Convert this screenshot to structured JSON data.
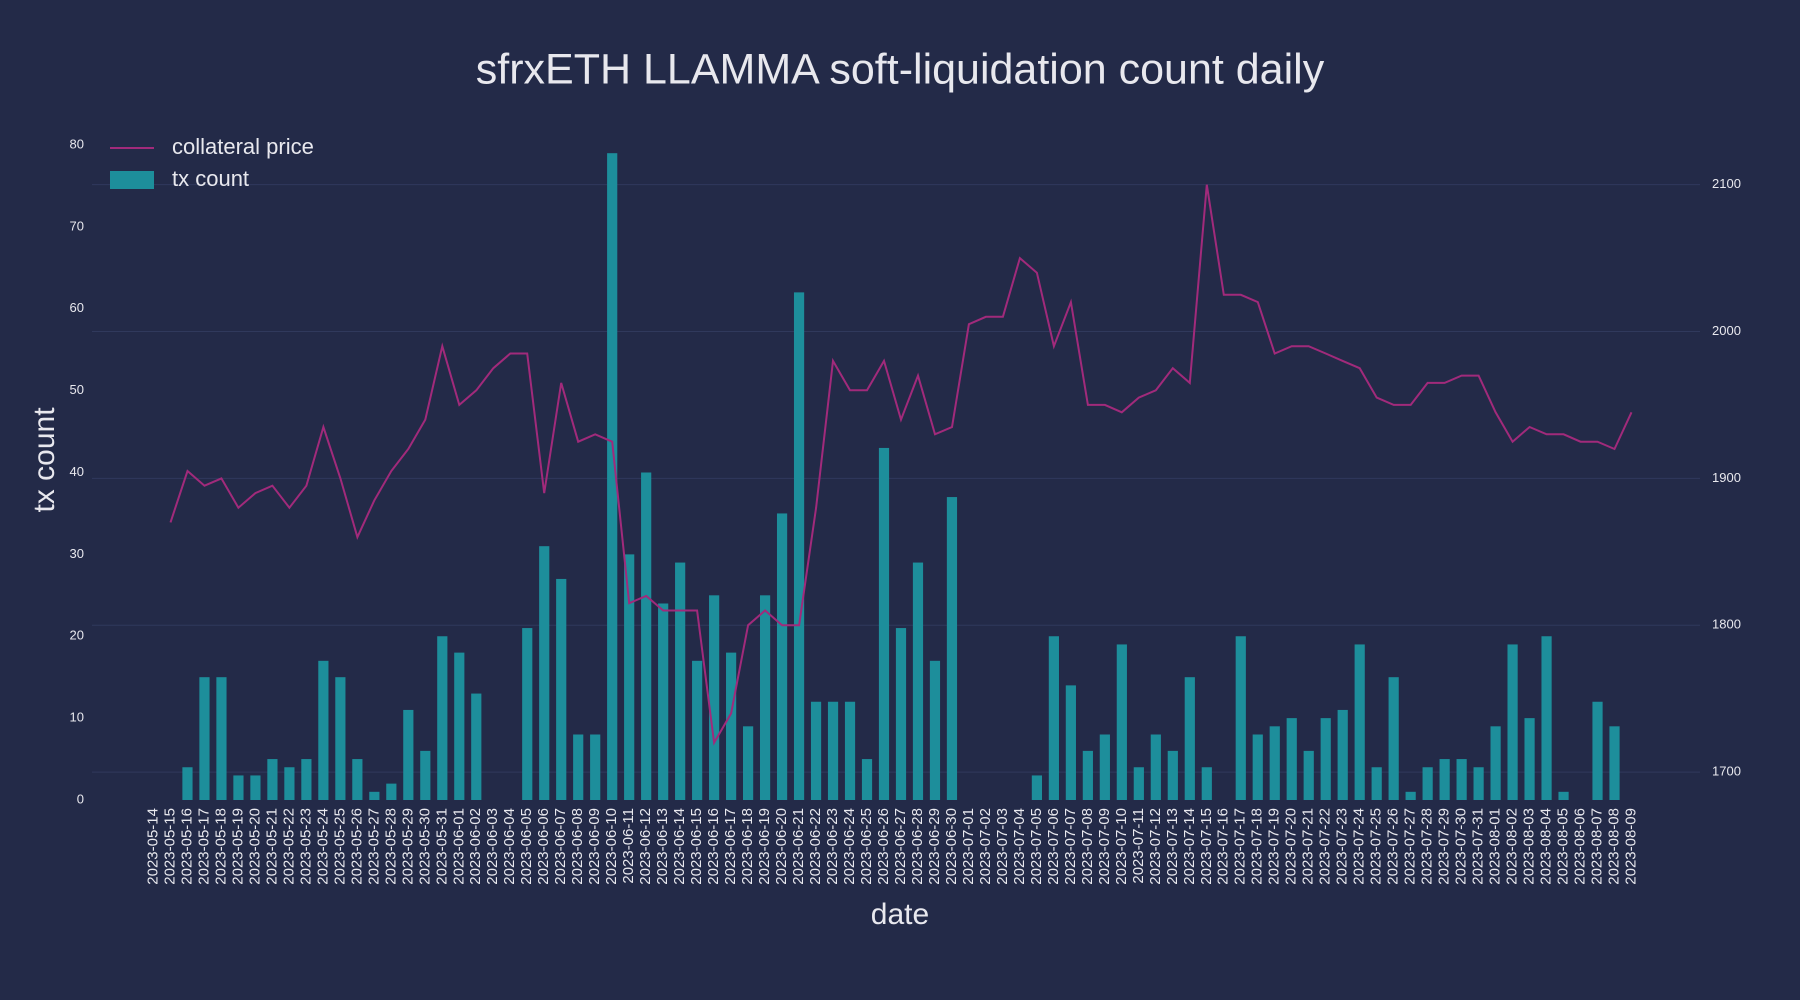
{
  "chart_data": {
    "type": "bar",
    "title": "sfrxETH LLAMMA soft-liquidation count daily",
    "x_label": "date",
    "y_label": "tx count",
    "categories": [
      "2023-05-14",
      "2023-05-15",
      "2023-05-16",
      "2023-05-17",
      "2023-05-18",
      "2023-05-19",
      "2023-05-20",
      "2023-05-21",
      "2023-05-22",
      "2023-05-23",
      "2023-05-24",
      "2023-05-25",
      "2023-05-26",
      "2023-05-27",
      "2023-05-28",
      "2023-05-29",
      "2023-05-30",
      "2023-05-31",
      "2023-06-01",
      "2023-06-02",
      "2023-06-03",
      "2023-06-04",
      "2023-06-05",
      "2023-06-06",
      "2023-06-07",
      "2023-06-08",
      "2023-06-09",
      "2023-06-10",
      "2023-06-11",
      "2023-06-12",
      "2023-06-13",
      "2023-06-14",
      "2023-06-15",
      "2023-06-16",
      "2023-06-17",
      "2023-06-18",
      "2023-06-19",
      "2023-06-20",
      "2023-06-21",
      "2023-06-22",
      "2023-06-23",
      "2023-06-24",
      "2023-06-25",
      "2023-06-26",
      "2023-06-27",
      "2023-06-28",
      "2023-06-29",
      "2023-06-30",
      "2023-07-01",
      "2023-07-02",
      "2023-07-03",
      "2023-07-04",
      "2023-07-05",
      "2023-07-06",
      "2023-07-07",
      "2023-07-08",
      "2023-07-09",
      "2023-07-10",
      "2023-07-11",
      "2023-07-12",
      "2023-07-13",
      "2023-07-14",
      "2023-07-15",
      "2023-07-16",
      "2023-07-17",
      "2023-07-18",
      "2023-07-19",
      "2023-07-20",
      "2023-07-21",
      "2023-07-22",
      "2023-07-23",
      "2023-07-24",
      "2023-07-25",
      "2023-07-26",
      "2023-07-27",
      "2023-07-28",
      "2023-07-29",
      "2023-07-30",
      "2023-07-31",
      "2023-08-01",
      "2023-08-02",
      "2023-08-03",
      "2023-08-04",
      "2023-08-05",
      "2023-08-06",
      "2023-08-07",
      "2023-08-08",
      "2023-08-09"
    ],
    "series": [
      {
        "name": "collateral price",
        "type": "line",
        "axis": "y2",
        "color": "#a12a7b",
        "values": [
          null,
          1870,
          1905,
          1895,
          1900,
          1880,
          1890,
          1895,
          1880,
          1895,
          1935,
          1900,
          1860,
          1885,
          1905,
          1920,
          1940,
          1990,
          1950,
          1960,
          1975,
          1985,
          1985,
          1890,
          1965,
          1925,
          1930,
          1925,
          1815,
          1820,
          1810,
          1810,
          1810,
          1720,
          1740,
          1800,
          1810,
          1800,
          1800,
          1880,
          1980,
          1960,
          1960,
          1980,
          1940,
          1970,
          1930,
          1935,
          2005,
          2010,
          2010,
          2050,
          2040,
          1990,
          2020,
          1950,
          1950,
          1945,
          1955,
          1960,
          1975,
          1965,
          2100,
          2025,
          2025,
          2020,
          1985,
          1990,
          1990,
          1985,
          1980,
          1975,
          1955,
          1950,
          1950,
          1965,
          1965,
          1970,
          1970,
          1945,
          1925,
          1935,
          1930,
          1930,
          1925,
          1925,
          1920,
          1945
        ]
      },
      {
        "name": "tx count",
        "type": "bar",
        "color": "#1d8e9b",
        "values": [
          0,
          0,
          4,
          15,
          15,
          3,
          3,
          5,
          4,
          5,
          17,
          15,
          5,
          1,
          2,
          11,
          6,
          20,
          18,
          13,
          0,
          0,
          21,
          31,
          27,
          8,
          8,
          79,
          30,
          40,
          24,
          29,
          17,
          25,
          18,
          9,
          25,
          35,
          62,
          12,
          12,
          12,
          5,
          43,
          21,
          29,
          17,
          37,
          0,
          0,
          0,
          0,
          3,
          20,
          14,
          6,
          8,
          19,
          4,
          8,
          6,
          15,
          4,
          0,
          20,
          8,
          9,
          10,
          6,
          10,
          11,
          19,
          4,
          15,
          1,
          4,
          5,
          5,
          4,
          9,
          19,
          10,
          20,
          1,
          0,
          12,
          9,
          0
        ]
      }
    ],
    "ylim": [
      0,
      80
    ],
    "yticks": [
      0,
      10,
      20,
      30,
      40,
      50,
      60,
      70,
      80
    ],
    "y2lim": [
      1681,
      2127
    ],
    "y2ticks": [
      1700,
      1800,
      1900,
      2000,
      2100
    ],
    "grid": "y2",
    "legend": "top-left"
  }
}
